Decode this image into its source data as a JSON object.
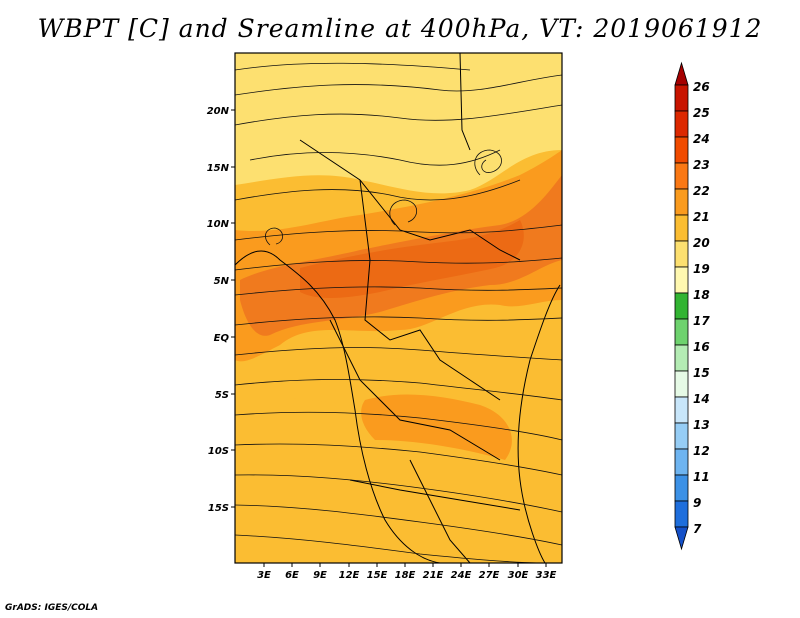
{
  "title": "WBPT [C] and Sreamline at 400hPa, VT: 2019061912",
  "credit": "GrADS: IGES/COLA",
  "map": {
    "lat_labels": [
      "20N",
      "15N",
      "10N",
      "5N",
      "EQ",
      "5S",
      "10S",
      "15S"
    ],
    "lon_labels": [
      "3E",
      "6E",
      "9E",
      "12E",
      "15E",
      "18E",
      "21E",
      "24E",
      "27E",
      "30E",
      "33E"
    ]
  },
  "colorbar": {
    "labels": [
      "26",
      "25",
      "24",
      "23",
      "22",
      "21",
      "20",
      "19",
      "18",
      "17",
      "16",
      "15",
      "14",
      "13",
      "12",
      "11",
      "9",
      "7"
    ],
    "colors": [
      "#a50000",
      "#c81400",
      "#dc2800",
      "#f04b00",
      "#fa7814",
      "#fa9b1e",
      "#fbbd32",
      "#fde070",
      "#fff8b0",
      "#32b432",
      "#6ed26e",
      "#b4ecb4",
      "#e6fae6",
      "#c8e6fa",
      "#96cdf5",
      "#6eb4f0",
      "#3c91e6",
      "#1e6edc",
      "#1450c8"
    ]
  },
  "legend_fields": {
    "field": "WBPT [C]",
    "overlay": "Sreamline",
    "level": "400hPa",
    "valid_time": "2019061912"
  }
}
